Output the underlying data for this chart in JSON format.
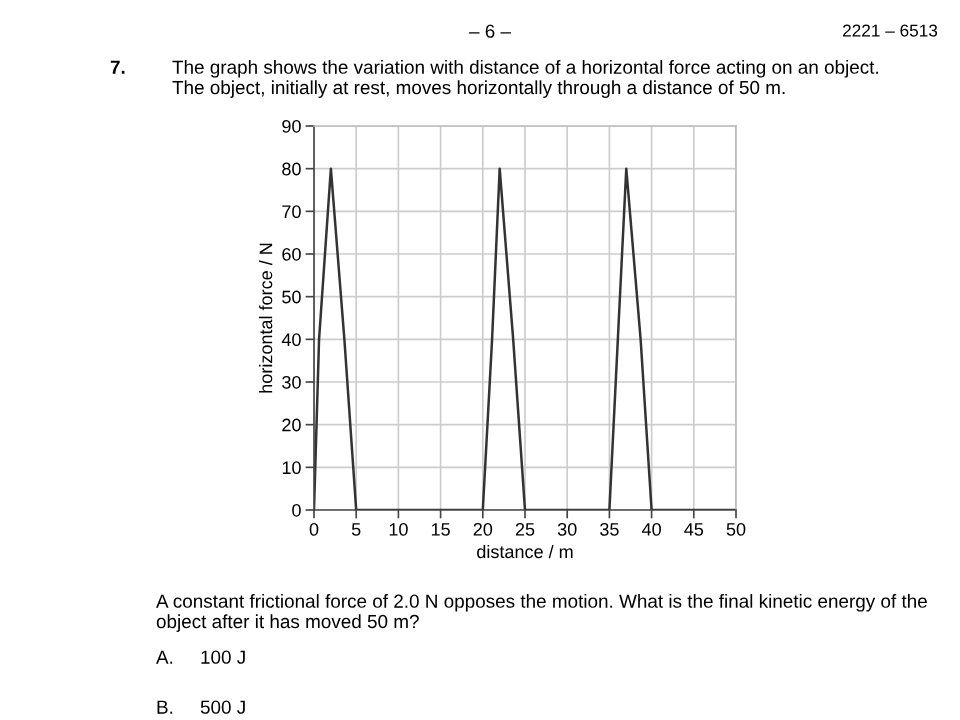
{
  "chart_data": {
    "type": "line",
    "title": "The graph shows the variation with distance of a horizontal force acting on an object.\nThe object, initially at rest, moves horizontally through a distance of 50 m.",
    "xlabel": "distance / m",
    "ylabel": "horizontal force / N",
    "x": [
      0,
      0.6,
      2,
      3.6,
      5,
      20,
      21.1,
      22,
      23.6,
      25,
      35,
      36,
      37,
      38.7,
      40,
      50
    ],
    "series": [
      {
        "color": "#333333",
        "values": [
          0,
          40,
          80,
          40,
          0,
          0,
          40,
          80,
          40,
          0,
          0,
          40,
          80,
          40,
          0,
          0
        ]
      }
    ],
    "xlim": [
      0,
      50
    ],
    "xticks": [
      0,
      5,
      10,
      15,
      20,
      25,
      30,
      35,
      40,
      45,
      50
    ],
    "ylim": [
      0,
      90
    ],
    "yticks": [
      0,
      10,
      20,
      30,
      40,
      50,
      60,
      70,
      80,
      90
    ],
    "grid": true,
    "annotations": [
      "– 6 –",
      "2221 – 6513",
      "7.",
      "A constant frictional force of 2.0 N opposes the motion. What is the final kinetic energy of the\nobject after it has moved 50 m?",
      "A.",
      "100 J",
      "B.",
      "500 J"
    ]
  }
}
